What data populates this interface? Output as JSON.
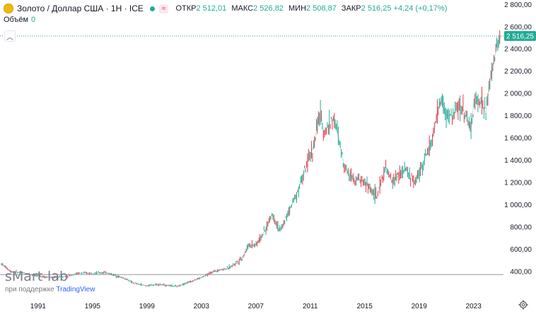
{
  "header": {
    "symbol_title": "Золото / Доллар США · 1H · ICE",
    "compare_label": "≈",
    "ohlc": [
      {
        "key": "ОТКР",
        "value": "2 512,01"
      },
      {
        "key": "МАКС",
        "value": "2 526,82"
      },
      {
        "key": "МИН",
        "value": "2 508,87"
      },
      {
        "key": "ЗАКР",
        "value": "2 516,25"
      }
    ],
    "change": "+4,24 (+0,17%)",
    "volume_label": "Объём",
    "volume_value": "0"
  },
  "colors": {
    "up": "#22ab94",
    "down": "#f23645",
    "price_line": "#26a69a",
    "ref_line": "#9598a1"
  },
  "chart_data": {
    "type": "line",
    "title": "Золото / Доллар США · 1H · ICE",
    "xlabel": "",
    "ylabel": "",
    "x_tick_labels": [
      "1991",
      "1995",
      "1999",
      "2003",
      "2007",
      "2011",
      "2015",
      "2019",
      "2023"
    ],
    "x_tick_years": [
      1991,
      1995,
      1999,
      2003,
      2007,
      2011,
      2015,
      2019,
      2023
    ],
    "y_tick_values": [
      400,
      600,
      800,
      1000,
      1200,
      1400,
      1600,
      1800,
      2000,
      2200,
      2400,
      2600,
      2800
    ],
    "y_tick_labels": [
      "400,00",
      "600,00",
      "800,00",
      "1 000,00",
      "1 200,00",
      "1 400,00",
      "1 600,00",
      "1 800,00",
      "2 000,00",
      "2 200,00",
      "2 400,00",
      "2 600,00",
      "2 800,00"
    ],
    "xlim": [
      1988.2,
      2025.2
    ],
    "ylim": [
      170,
      2840
    ],
    "grid": false,
    "last_price": 2516.25,
    "last_price_label": "2 516,25",
    "reference_level": 372,
    "series": [
      {
        "name": "Gold USD",
        "x": [
          1988.3,
          1989.0,
          1990.0,
          1991.0,
          1992.0,
          1993.0,
          1994.0,
          1995.0,
          1996.0,
          1996.8,
          1997.5,
          1998.0,
          1999.0,
          1999.7,
          2000.5,
          2001.2,
          2002.0,
          2003.0,
          2004.0,
          2005.0,
          2006.0,
          2006.5,
          2007.0,
          2007.7,
          2008.2,
          2008.8,
          2009.5,
          2010.0,
          2010.8,
          2011.3,
          2011.7,
          2012.0,
          2012.7,
          2013.0,
          2013.5,
          2014.0,
          2015.0,
          2015.9,
          2016.5,
          2017.0,
          2018.0,
          2018.7,
          2019.0,
          2019.7,
          2020.0,
          2020.6,
          2021.0,
          2021.5,
          2022.0,
          2022.5,
          2022.8,
          2023.0,
          2023.5,
          2023.9,
          2024.2,
          2024.6,
          2025.0
        ],
        "values": [
          470,
          400,
          385,
          360,
          345,
          355,
          385,
          385,
          390,
          360,
          330,
          295,
          270,
          285,
          275,
          265,
          300,
          345,
          405,
          430,
          520,
          640,
          640,
          770,
          920,
          760,
          960,
          1100,
          1370,
          1550,
          1820,
          1650,
          1780,
          1650,
          1350,
          1260,
          1200,
          1070,
          1330,
          1210,
          1320,
          1190,
          1290,
          1500,
          1600,
          1960,
          1800,
          1800,
          1900,
          1800,
          1650,
          1900,
          1950,
          1820,
          2100,
          2360,
          2516
        ]
      }
    ]
  },
  "watermark": {
    "brand": "sMart-lab",
    "sub_prefix": "при поддержке",
    "sub_brand": "TradingView"
  }
}
